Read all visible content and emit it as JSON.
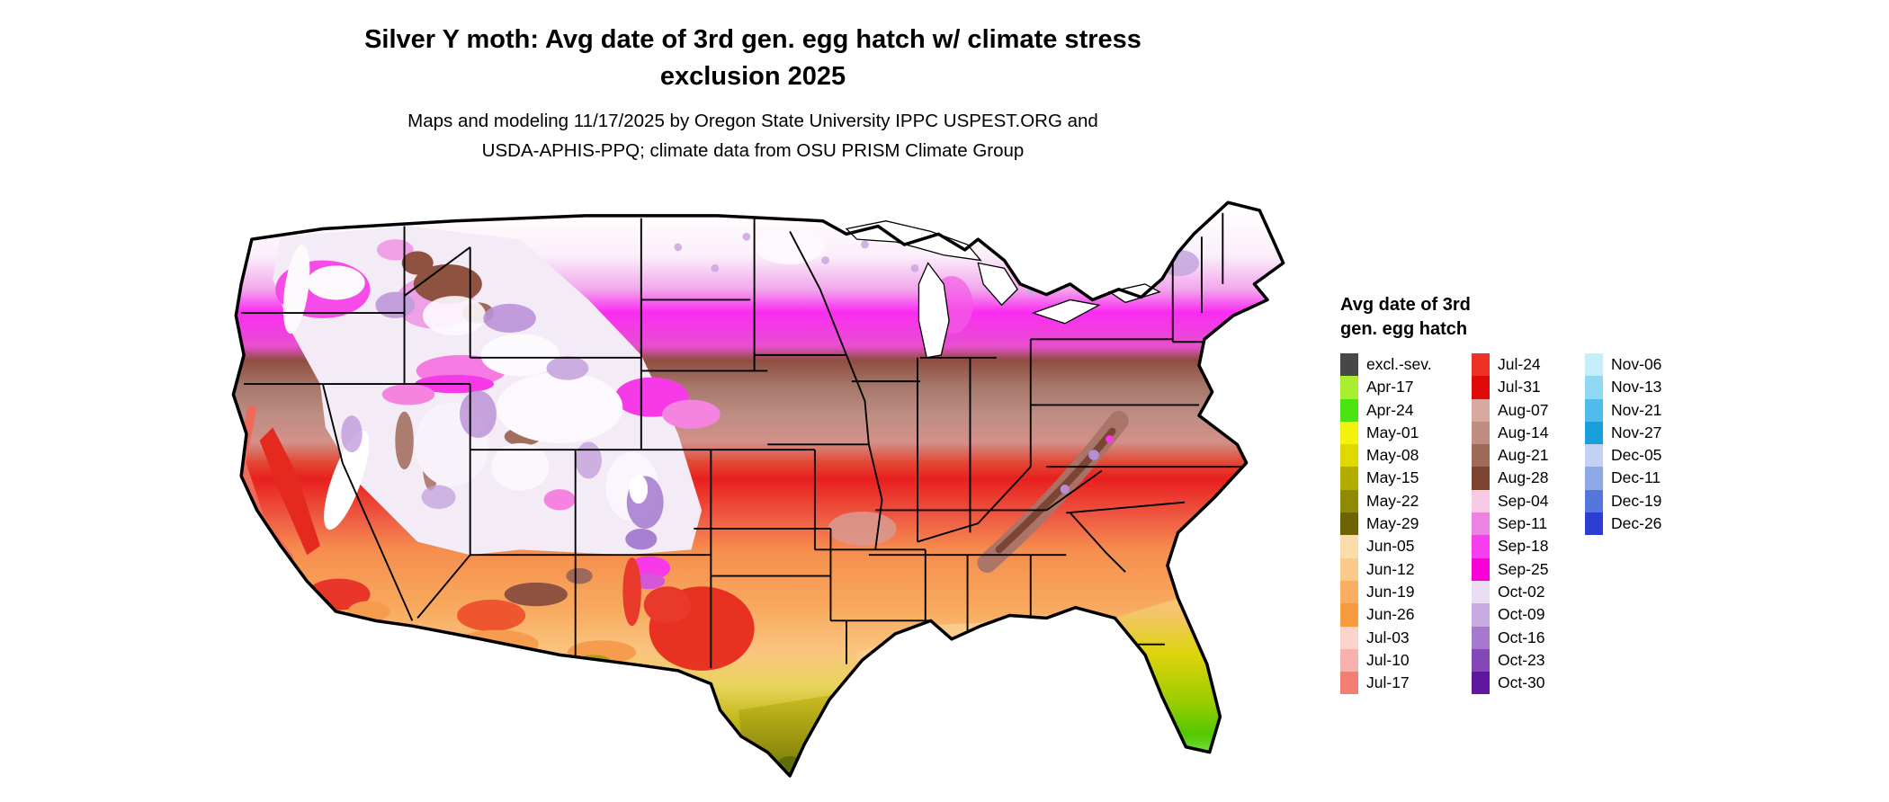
{
  "header": {
    "title_line1": "Silver Y moth: Avg date of 3rd gen. egg hatch w/ climate stress",
    "title_line2": "exclusion 2025",
    "subtitle_line1": "Maps and modeling 11/17/2025 by Oregon State University IPPC USPEST.ORG and",
    "subtitle_line2": "USDA-APHIS-PPQ; climate data from OSU PRISM Climate Group"
  },
  "legend": {
    "title_line1": "Avg date of 3rd",
    "title_line2": "gen. egg hatch",
    "columns": [
      {
        "entries": [
          {
            "label": "excl.-sev.",
            "color": "#474747"
          },
          {
            "label": "Apr-17",
            "color": "#aaee30"
          },
          {
            "label": "Apr-24",
            "color": "#4be312"
          },
          {
            "label": "May-01",
            "color": "#f2f20c"
          },
          {
            "label": "May-08",
            "color": "#dfd900"
          },
          {
            "label": "May-15",
            "color": "#b3ad00"
          },
          {
            "label": "May-22",
            "color": "#8f8a00"
          },
          {
            "label": "May-29",
            "color": "#6b6400"
          },
          {
            "label": "Jun-05",
            "color": "#fcdcaa"
          },
          {
            "label": "Jun-12",
            "color": "#fbc98a"
          },
          {
            "label": "Jun-19",
            "color": "#f9ae62"
          },
          {
            "label": "Jun-26",
            "color": "#f79a3e"
          },
          {
            "label": "Jul-03",
            "color": "#fcd3cb"
          },
          {
            "label": "Jul-10",
            "color": "#f9b1ad"
          },
          {
            "label": "Jul-17",
            "color": "#f37f72"
          }
        ]
      },
      {
        "entries": [
          {
            "label": "Jul-24",
            "color": "#ed3124"
          },
          {
            "label": "Jul-31",
            "color": "#e00a0a"
          },
          {
            "label": "Aug-07",
            "color": "#d7a99f"
          },
          {
            "label": "Aug-14",
            "color": "#c08d80"
          },
          {
            "label": "Aug-21",
            "color": "#9f6a57"
          },
          {
            "label": "Aug-28",
            "color": "#7a4430"
          },
          {
            "label": "Sep-04",
            "color": "#f6c9e4"
          },
          {
            "label": "Sep-11",
            "color": "#ee82e0"
          },
          {
            "label": "Sep-18",
            "color": "#f73df0"
          },
          {
            "label": "Sep-25",
            "color": "#fa00d8"
          },
          {
            "label": "Oct-02",
            "color": "#e9dcf3"
          },
          {
            "label": "Oct-09",
            "color": "#c9abe3"
          },
          {
            "label": "Oct-16",
            "color": "#a679cf"
          },
          {
            "label": "Oct-23",
            "color": "#8347b8"
          },
          {
            "label": "Oct-30",
            "color": "#5f17a0"
          }
        ]
      },
      {
        "entries": [
          {
            "label": "Nov-06",
            "color": "#c5eefa"
          },
          {
            "label": "Nov-13",
            "color": "#8fd9f2"
          },
          {
            "label": "Nov-21",
            "color": "#4fbceb"
          },
          {
            "label": "Nov-27",
            "color": "#189fdd"
          },
          {
            "label": "Dec-05",
            "color": "#c3d2f2"
          },
          {
            "label": "Dec-11",
            "color": "#8fa8e8"
          },
          {
            "label": "Dec-19",
            "color": "#5577dd"
          },
          {
            "label": "Dec-26",
            "color": "#2b3ed1"
          }
        ]
      }
    ]
  }
}
